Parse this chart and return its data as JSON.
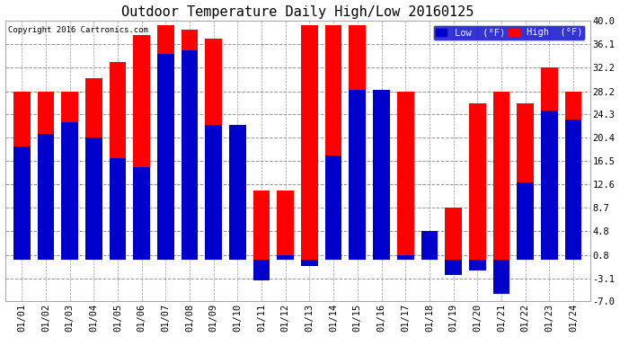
{
  "title": "Outdoor Temperature Daily High/Low 20160125",
  "copyright": "Copyright 2016 Cartronics.com",
  "legend_low": "Low  (°F)",
  "legend_high": "High  (°F)",
  "dates": [
    "01/01",
    "01/02",
    "01/03",
    "01/04",
    "01/05",
    "01/06",
    "01/07",
    "01/08",
    "01/09",
    "01/10",
    "01/11",
    "01/12",
    "01/13",
    "01/14",
    "01/15",
    "01/16",
    "01/17",
    "01/18",
    "01/19",
    "01/20",
    "01/21",
    "01/22",
    "01/23",
    "01/24"
  ],
  "high": [
    28.2,
    28.2,
    28.2,
    30.4,
    33.1,
    37.6,
    39.2,
    38.5,
    37.0,
    22.5,
    11.5,
    11.5,
    39.2,
    39.2,
    39.2,
    28.5,
    28.2,
    4.8,
    8.7,
    26.2,
    28.2,
    26.2,
    32.2,
    28.2
  ],
  "low": [
    19.0,
    21.0,
    23.0,
    20.4,
    17.0,
    15.5,
    34.5,
    35.0,
    22.5,
    22.5,
    -3.5,
    0.8,
    -1.0,
    17.5,
    28.5,
    28.5,
    0.8,
    4.8,
    -2.5,
    -1.8,
    -5.8,
    13.0,
    25.0,
    23.5
  ],
  "ylim": [
    -7.0,
    40.0
  ],
  "yticks": [
    -7.0,
    -3.1,
    0.8,
    4.8,
    8.7,
    12.6,
    16.5,
    20.4,
    24.3,
    28.2,
    32.2,
    36.1,
    40.0
  ],
  "bar_width": 0.7,
  "color_high": "#ff0000",
  "color_low": "#0000cc",
  "bg_color": "#ffffff",
  "grid_color": "#999999",
  "title_fontsize": 11,
  "tick_fontsize": 7.5
}
